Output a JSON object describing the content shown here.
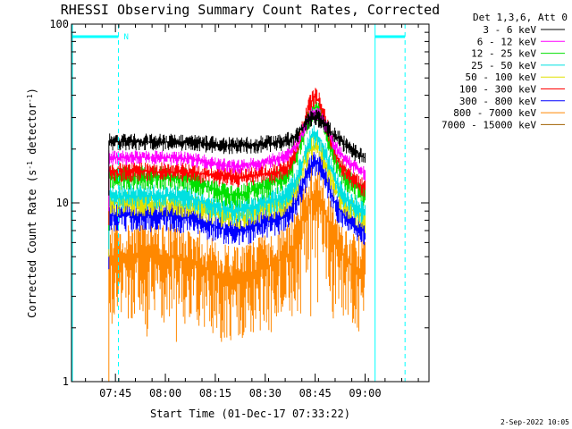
{
  "chart_data": {
    "type": "line",
    "title": "RHESSI Observing Summary Count Rates, Corrected",
    "xlabel": "Start Time (01-Dec-17 07:33:22)",
    "ylabel_main": "Corrected Count Rate (s",
    "ylabel_sup1": "-1",
    "ylabel_mid": " detector",
    "ylabel_sup2": "-1",
    "ylabel_end": ")",
    "y_scale": "log",
    "ylim": [
      1,
      100
    ],
    "y_ticks": [
      {
        "value": 1,
        "label": "1"
      },
      {
        "value": 10,
        "label": "10"
      },
      {
        "value": 100,
        "label": "100"
      }
    ],
    "xlim_minutes": [
      7.53,
      9.32
    ],
    "x_ticks": [
      {
        "value": 7.75,
        "label": "07:45"
      },
      {
        "value": 8.0,
        "label": "08:00"
      },
      {
        "value": 8.25,
        "label": "08:15"
      },
      {
        "value": 8.5,
        "label": "08:30"
      },
      {
        "value": 8.75,
        "label": "08:45"
      },
      {
        "value": 9.0,
        "label": "09:00"
      }
    ],
    "legend_header": "Det 1,3,6, Att 0",
    "legend_position": "outside-right",
    "data_start": 7.717,
    "data_end": 9.0,
    "flare_peak": 8.75,
    "series": [
      {
        "name": "3 - 6 keV",
        "color": "#000000",
        "base": 22,
        "dip": 21,
        "peak": 30,
        "noise": 0.07
      },
      {
        "name": "6 - 12 keV",
        "color": "#ff00ff",
        "base": 18,
        "dip": 16,
        "peak": 32,
        "noise": 0.06
      },
      {
        "name": "12 - 25 keV",
        "color": "#00e000",
        "base": 14,
        "dip": 11,
        "peak": 34,
        "noise": 0.1
      },
      {
        "name": "25 - 50 keV",
        "color": "#00e0e0",
        "base": 11,
        "dip": 9,
        "peak": 24,
        "noise": 0.1
      },
      {
        "name": "50 - 100 keV",
        "color": "#e0e000",
        "base": 10,
        "dip": 8.5,
        "peak": 21,
        "noise": 0.1
      },
      {
        "name": "100 - 300 keV",
        "color": "#ff0000",
        "base": 15,
        "dip": 14,
        "peak": 39,
        "noise": 0.08
      },
      {
        "name": "300 - 800 keV",
        "color": "#0000ff",
        "base": 8.5,
        "dip": 7,
        "peak": 17,
        "noise": 0.12
      },
      {
        "name": "800 - 7000 keV",
        "color": "#ff8800",
        "base": 5,
        "dip": 3.7,
        "peak": 11,
        "noise": 0.35
      },
      {
        "name": "7000 - 15000 keV",
        "color": "#a06000",
        "base": 0,
        "dip": 0,
        "peak": 0,
        "noise": 0
      }
    ],
    "gridlines": false
  },
  "annotations": {
    "n_marker": "N",
    "saa_marker_color": "#00ffff"
  },
  "footer": {
    "date": "2-Sep-2022 10:05"
  }
}
